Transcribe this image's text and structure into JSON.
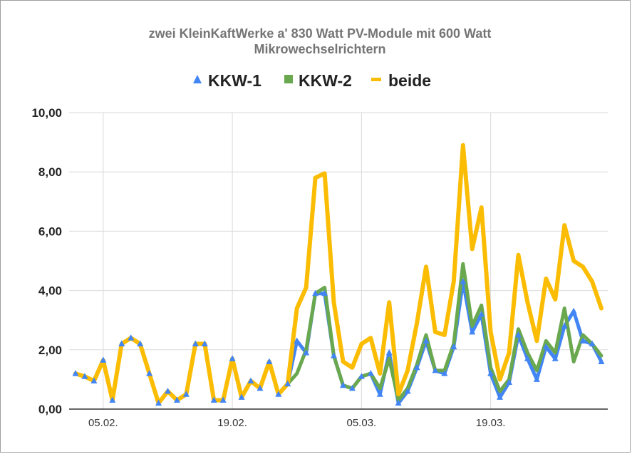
{
  "chart_data": {
    "type": "line",
    "title": "zwei KleinKaftWerke a' 830 Watt PV-Module mit 600 Watt",
    "subtitle": "Mikrowechselrichtern",
    "ylim": [
      0,
      10
    ],
    "y_ticks": [
      "0,00",
      "2,00",
      "4,00",
      "6,00",
      "8,00",
      "10,00"
    ],
    "x_ticks": [
      {
        "label": "05.02.",
        "index": 3
      },
      {
        "label": "19.02.",
        "index": 17
      },
      {
        "label": "05.03.",
        "index": 31
      },
      {
        "label": "19.03.",
        "index": 45
      }
    ],
    "grid": true,
    "legend_position": "top",
    "colors": {
      "kkw1": "#4285F4",
      "kkw2": "#6AA84F",
      "beide": "#FBBC04",
      "grid": "#d9d9d9",
      "axis": "#333333"
    },
    "series": [
      {
        "name": "KKW-1",
        "marker": "triangle",
        "values": [
          1.2,
          1.1,
          0.95,
          1.65,
          0.3,
          2.2,
          2.4,
          2.2,
          1.2,
          0.2,
          0.6,
          0.3,
          0.5,
          2.2,
          2.2,
          0.3,
          0.3,
          1.7,
          0.4,
          0.95,
          0.7,
          1.6,
          0.5,
          0.85,
          2.3,
          1.9,
          3.9,
          3.9,
          1.8,
          0.8,
          0.7,
          1.1,
          1.2,
          0.5,
          1.9,
          0.2,
          0.6,
          1.4,
          2.3,
          1.3,
          1.2,
          2.1,
          4.3,
          2.6,
          3.2,
          1.2,
          0.4,
          0.9,
          2.5,
          1.7,
          1.0,
          2.1,
          1.7,
          2.8,
          3.3,
          2.3,
          2.2,
          1.6
        ]
      },
      {
        "name": "KKW-2",
        "marker": "square",
        "values": [
          1.2,
          1.1,
          0.95,
          1.65,
          0.3,
          2.2,
          2.4,
          2.2,
          1.2,
          0.2,
          0.6,
          0.3,
          0.5,
          2.2,
          2.2,
          0.3,
          0.3,
          1.7,
          0.4,
          0.95,
          0.7,
          1.6,
          0.5,
          0.85,
          1.2,
          2.0,
          3.9,
          4.1,
          1.8,
          0.8,
          0.7,
          1.1,
          1.2,
          0.7,
          1.7,
          0.3,
          0.7,
          1.5,
          2.5,
          1.3,
          1.3,
          2.2,
          4.9,
          2.8,
          3.5,
          1.4,
          0.6,
          1.0,
          2.7,
          1.9,
          1.3,
          2.3,
          1.9,
          3.4,
          1.6,
          2.5,
          2.2,
          1.8
        ]
      },
      {
        "name": "beide",
        "marker": "dash",
        "values": [
          1.2,
          1.1,
          0.95,
          1.65,
          0.3,
          2.2,
          2.4,
          2.2,
          1.2,
          0.2,
          0.6,
          0.3,
          0.5,
          2.2,
          2.2,
          0.3,
          0.3,
          1.7,
          0.4,
          0.95,
          0.7,
          1.6,
          0.5,
          0.85,
          3.4,
          4.1,
          7.8,
          7.95,
          3.6,
          1.6,
          1.4,
          2.2,
          2.4,
          1.2,
          3.6,
          0.5,
          1.3,
          2.9,
          4.8,
          2.6,
          2.5,
          4.3,
          8.9,
          5.4,
          6.8,
          2.6,
          1.0,
          1.9,
          5.2,
          3.6,
          2.3,
          4.4,
          3.7,
          6.2,
          5.0,
          4.8,
          4.3,
          3.4
        ]
      }
    ]
  }
}
